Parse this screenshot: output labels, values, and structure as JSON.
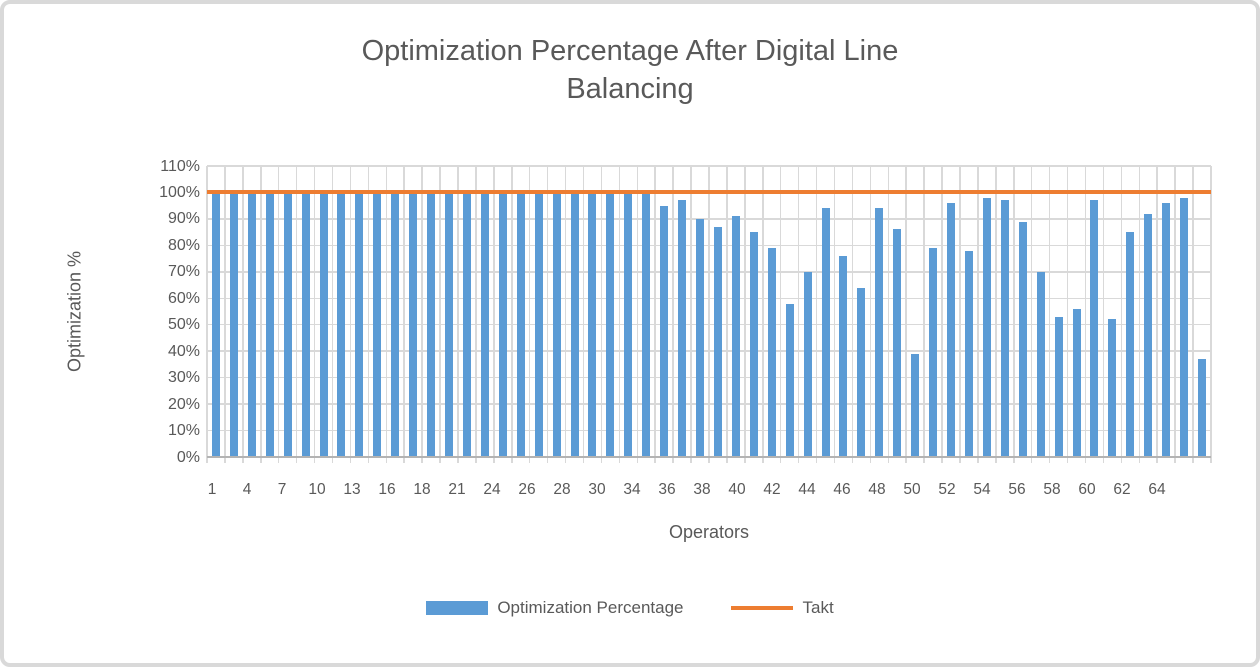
{
  "chart": {
    "title_line1": "Optimization Percentage After Digital Line",
    "title_line2": "Balancing",
    "y_axis_title": "Optimization %",
    "x_axis_title": "Operators",
    "legend": [
      {
        "label": "Optimization Percentage",
        "type": "bar",
        "color": "#5b9bd5"
      },
      {
        "label": "Takt",
        "type": "line",
        "color": "#ed7d31"
      }
    ]
  },
  "chart_data": {
    "type": "bar",
    "title": "Optimization Percentage After Digital Line Balancing",
    "xlabel": "Operators",
    "ylabel": "Optimization %",
    "ylim": [
      0,
      110
    ],
    "grid": "both",
    "legend_position": "bottom",
    "y_tick_labels": [
      "0%",
      "10%",
      "20%",
      "30%",
      "40%",
      "50%",
      "60%",
      "70%",
      "80%",
      "90%",
      "100%",
      "110%"
    ],
    "x_tick_labels": [
      "1",
      "4",
      "7",
      "10",
      "13",
      "16",
      "18",
      "21",
      "24",
      "26",
      "28",
      "30",
      "34",
      "36",
      "38",
      "40",
      "42",
      "44",
      "46",
      "48",
      "50",
      "52",
      "54",
      "56",
      "58",
      "60",
      "62",
      "64"
    ],
    "series": [
      {
        "name": "Optimization Percentage",
        "type": "bar",
        "color": "#5b9bd5",
        "values": [
          100,
          100,
          100,
          100,
          100,
          100,
          100,
          100,
          100,
          100,
          100,
          100,
          100,
          100,
          100,
          100,
          100,
          100,
          100,
          100,
          100,
          100,
          100,
          100,
          100,
          95,
          97,
          90,
          87,
          91,
          85,
          79,
          58,
          70,
          94,
          76,
          64,
          94,
          86,
          39,
          79,
          96,
          78,
          98,
          97,
          89,
          70,
          53,
          56,
          97,
          52,
          85,
          92,
          96,
          98,
          37
        ]
      },
      {
        "name": "Takt",
        "type": "line",
        "color": "#ed7d31",
        "value": 100
      }
    ]
  },
  "colors": {
    "bar": "#5b9bd5",
    "takt_line": "#ed7d31",
    "gridline": "#d9d9d9",
    "axis_line": "#b3b3b3",
    "text": "#595959",
    "frame_border": "#d9d9d9"
  }
}
